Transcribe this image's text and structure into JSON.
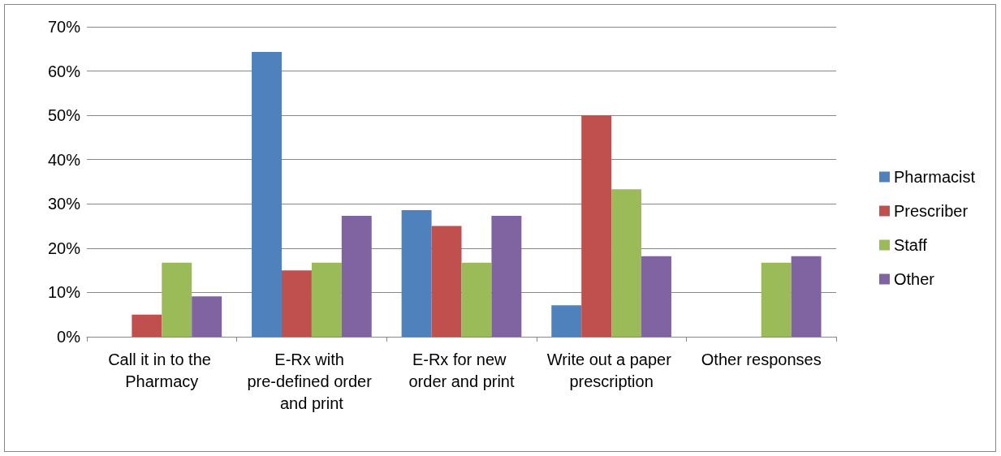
{
  "chart_data": {
    "type": "bar",
    "categories": [
      "Call it in to the Pharmacy",
      "E-Rx with pre-defined order and print",
      "E-Rx for new order and print",
      "Write out a paper prescription",
      "Other responses"
    ],
    "series": [
      {
        "name": "Pharmacist",
        "color": "#4f81bd",
        "values": [
          0,
          64.3,
          28.6,
          7.1,
          0
        ]
      },
      {
        "name": "Prescriber",
        "color": "#c0504d",
        "values": [
          5,
          15,
          25,
          50,
          0
        ]
      },
      {
        "name": "Staff",
        "color": "#9bbb59",
        "values": [
          16.7,
          16.7,
          16.7,
          33.3,
          16.7
        ]
      },
      {
        "name": "Other",
        "color": "#8064a2",
        "values": [
          9.1,
          27.3,
          27.3,
          18.2,
          18.2
        ]
      }
    ],
    "ylim": [
      0,
      70
    ],
    "yticks": [
      {
        "value": 0,
        "label": "0%"
      },
      {
        "value": 10,
        "label": "10%"
      },
      {
        "value": 20,
        "label": "20%"
      },
      {
        "value": 30,
        "label": "30%"
      },
      {
        "value": 40,
        "label": "40%"
      },
      {
        "value": 50,
        "label": "50%"
      },
      {
        "value": 60,
        "label": "60%"
      },
      {
        "value": 70,
        "label": "70%"
      }
    ],
    "grid": "y",
    "legend": "right"
  }
}
